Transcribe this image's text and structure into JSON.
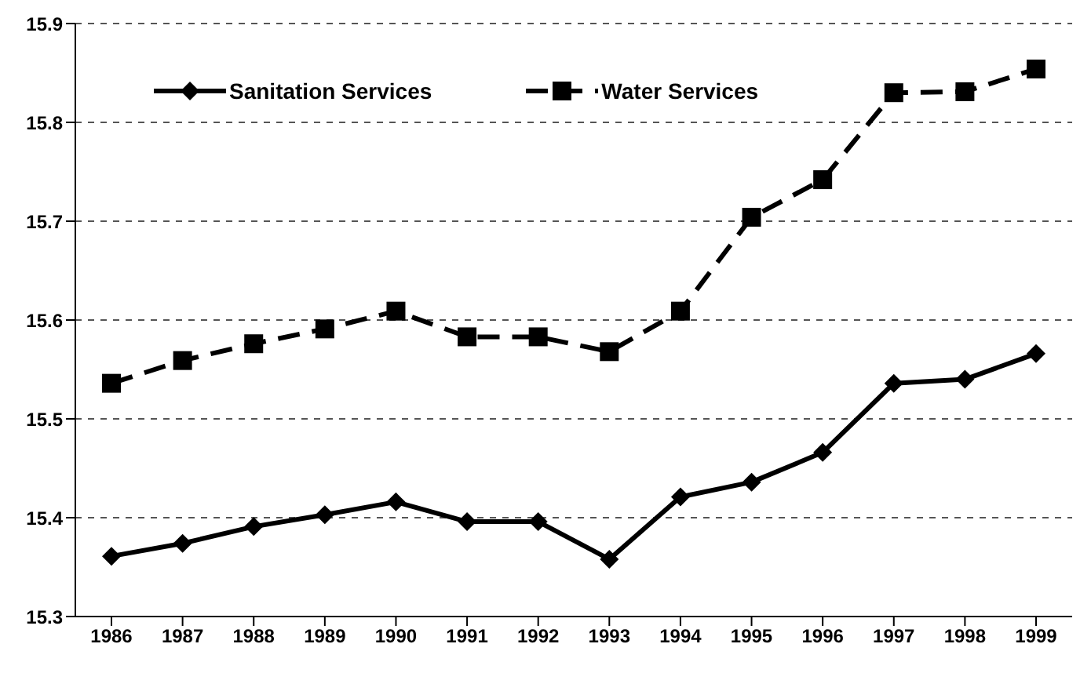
{
  "chart_data": {
    "type": "line",
    "categories": [
      "1986",
      "1987",
      "1988",
      "1989",
      "1990",
      "1991",
      "1992",
      "1993",
      "1994",
      "1995",
      "1996",
      "1997",
      "1998",
      "1999"
    ],
    "series": [
      {
        "name": "Sanitation Services",
        "color": "#000000",
        "marker": "diamond",
        "line_style": "solid",
        "values": [
          15.361,
          15.374,
          15.391,
          15.403,
          15.416,
          15.396,
          15.396,
          15.358,
          15.421,
          15.436,
          15.466,
          15.536,
          15.54,
          15.566
        ]
      },
      {
        "name": "Water Services",
        "color": "#000000",
        "marker": "square",
        "line_style": "dashed",
        "values": [
          15.536,
          15.559,
          15.576,
          15.591,
          15.609,
          15.583,
          15.583,
          15.568,
          15.609,
          15.704,
          15.742,
          15.83,
          15.831,
          15.854
        ]
      }
    ],
    "ylim": [
      15.3,
      15.9
    ],
    "yticks": [
      15.3,
      15.4,
      15.5,
      15.6,
      15.7,
      15.8,
      15.9
    ],
    "grid": "y",
    "legend": "top left"
  }
}
